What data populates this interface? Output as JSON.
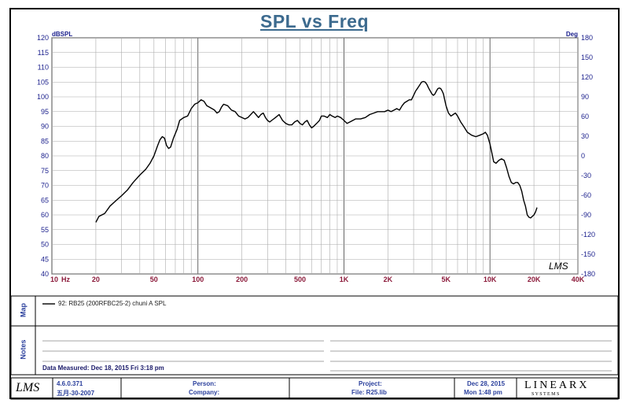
{
  "chart_data": {
    "type": "line",
    "title": "SPL vs Freq",
    "xscale": "log",
    "xlim": [
      10,
      40000
    ],
    "ylim": [
      40,
      120
    ],
    "y2lim": [
      -180,
      180
    ],
    "ylabel": "dBSPL",
    "y2label": "Deg",
    "x_ticks": [
      {
        "v": 10,
        "label": "10"
      },
      {
        "v": 20,
        "label": "20"
      },
      {
        "v": 50,
        "label": "50"
      },
      {
        "v": 100,
        "label": "100"
      },
      {
        "v": 200,
        "label": "200"
      },
      {
        "v": 500,
        "label": "500"
      },
      {
        "v": 1000,
        "label": "1K"
      },
      {
        "v": 2000,
        "label": "2K"
      },
      {
        "v": 5000,
        "label": "5K"
      },
      {
        "v": 10000,
        "label": "10K"
      },
      {
        "v": 20000,
        "label": "20K"
      },
      {
        "v": 40000,
        "label": "40K"
      }
    ],
    "x_unit": "Hz",
    "y_ticks": [
      40,
      45,
      50,
      55,
      60,
      65,
      70,
      75,
      80,
      85,
      90,
      95,
      100,
      105,
      110,
      115,
      120
    ],
    "y2_ticks": [
      -180,
      -150,
      -120,
      -90,
      -60,
      -30,
      0,
      30,
      60,
      90,
      120,
      150,
      180
    ],
    "grid": true,
    "legend": "below chart",
    "series": [
      {
        "name": "92: RB25 (200RFBC25-2)  chuni  A   SPL",
        "color": "#000000",
        "points": [
          [
            20,
            57.5
          ],
          [
            21,
            59.5
          ],
          [
            23,
            60.5
          ],
          [
            25,
            63
          ],
          [
            27,
            64.5
          ],
          [
            30,
            66.5
          ],
          [
            33,
            68.5
          ],
          [
            36,
            71
          ],
          [
            40,
            73.5
          ],
          [
            44,
            75.5
          ],
          [
            47,
            77.5
          ],
          [
            50,
            80
          ],
          [
            53,
            83.5
          ],
          [
            55,
            85.5
          ],
          [
            57,
            86.5
          ],
          [
            59,
            86
          ],
          [
            61,
            83.5
          ],
          [
            63,
            82.5
          ],
          [
            65,
            83
          ],
          [
            68,
            86
          ],
          [
            72,
            89
          ],
          [
            75,
            92
          ],
          [
            80,
            93
          ],
          [
            85,
            93.5
          ],
          [
            90,
            96
          ],
          [
            95,
            97.5
          ],
          [
            100,
            98
          ],
          [
            105,
            99
          ],
          [
            110,
            98.5
          ],
          [
            115,
            97
          ],
          [
            120,
            96.5
          ],
          [
            125,
            96
          ],
          [
            130,
            95.5
          ],
          [
            135,
            94.5
          ],
          [
            140,
            95
          ],
          [
            145,
            96.5
          ],
          [
            150,
            97.5
          ],
          [
            160,
            97
          ],
          [
            170,
            95.5
          ],
          [
            180,
            95
          ],
          [
            190,
            93.5
          ],
          [
            200,
            93
          ],
          [
            210,
            92.5
          ],
          [
            220,
            93
          ],
          [
            230,
            94
          ],
          [
            240,
            95
          ],
          [
            250,
            94
          ],
          [
            260,
            93
          ],
          [
            270,
            94
          ],
          [
            280,
            94.5
          ],
          [
            290,
            93
          ],
          [
            300,
            92
          ],
          [
            310,
            91.5
          ],
          [
            320,
            92
          ],
          [
            340,
            93
          ],
          [
            360,
            94
          ],
          [
            380,
            92
          ],
          [
            400,
            91
          ],
          [
            420,
            90.5
          ],
          [
            440,
            90.5
          ],
          [
            460,
            91.5
          ],
          [
            480,
            92
          ],
          [
            500,
            91
          ],
          [
            520,
            90.5
          ],
          [
            540,
            91.5
          ],
          [
            560,
            92
          ],
          [
            580,
            90.5
          ],
          [
            600,
            89.5
          ],
          [
            620,
            90
          ],
          [
            650,
            91
          ],
          [
            680,
            92
          ],
          [
            700,
            93.5
          ],
          [
            730,
            93.5
          ],
          [
            770,
            93
          ],
          [
            800,
            94
          ],
          [
            830,
            93.5
          ],
          [
            870,
            93
          ],
          [
            900,
            93.5
          ],
          [
            950,
            93
          ],
          [
            1000,
            92
          ],
          [
            1050,
            91
          ],
          [
            1100,
            91.5
          ],
          [
            1150,
            92
          ],
          [
            1200,
            92.5
          ],
          [
            1300,
            92.5
          ],
          [
            1400,
            93
          ],
          [
            1500,
            94
          ],
          [
            1600,
            94.5
          ],
          [
            1700,
            95
          ],
          [
            1800,
            95
          ],
          [
            1900,
            95
          ],
          [
            2000,
            95.5
          ],
          [
            2100,
            95
          ],
          [
            2200,
            95.5
          ],
          [
            2300,
            96
          ],
          [
            2400,
            95.5
          ],
          [
            2500,
            97
          ],
          [
            2600,
            98
          ],
          [
            2700,
            98.5
          ],
          [
            2800,
            99
          ],
          [
            2900,
            99
          ],
          [
            3000,
            100.5
          ],
          [
            3100,
            102
          ],
          [
            3200,
            103
          ],
          [
            3300,
            104
          ],
          [
            3400,
            105
          ],
          [
            3500,
            105.2
          ],
          [
            3600,
            105
          ],
          [
            3700,
            104.2
          ],
          [
            3800,
            103
          ],
          [
            3900,
            102
          ],
          [
            4000,
            101
          ],
          [
            4100,
            100.5
          ],
          [
            4200,
            101
          ],
          [
            4300,
            102
          ],
          [
            4400,
            102.8
          ],
          [
            4500,
            103
          ],
          [
            4600,
            102.8
          ],
          [
            4700,
            102
          ],
          [
            4800,
            101
          ],
          [
            4900,
            99
          ],
          [
            5000,
            97
          ],
          [
            5200,
            94.5
          ],
          [
            5400,
            93.5
          ],
          [
            5600,
            94
          ],
          [
            5800,
            94.5
          ],
          [
            6000,
            93.5
          ],
          [
            6300,
            91.5
          ],
          [
            6600,
            90
          ],
          [
            7000,
            88
          ],
          [
            7500,
            87
          ],
          [
            8000,
            86.5
          ],
          [
            8500,
            87
          ],
          [
            9000,
            87.5
          ],
          [
            9300,
            88
          ],
          [
            9600,
            87
          ],
          [
            10000,
            84
          ],
          [
            10300,
            81
          ],
          [
            10600,
            78
          ],
          [
            11000,
            77.5
          ],
          [
            11500,
            78.5
          ],
          [
            12000,
            79
          ],
          [
            12500,
            78.5
          ],
          [
            13000,
            76
          ],
          [
            13500,
            73
          ],
          [
            14000,
            71
          ],
          [
            14500,
            70.5
          ],
          [
            15000,
            71
          ],
          [
            15500,
            71
          ],
          [
            16000,
            70
          ],
          [
            16500,
            68
          ],
          [
            17000,
            65
          ],
          [
            17500,
            63
          ],
          [
            18000,
            60
          ],
          [
            18500,
            59.2
          ],
          [
            19000,
            59
          ],
          [
            19500,
            59.5
          ],
          [
            20000,
            60
          ],
          [
            20500,
            61
          ],
          [
            21000,
            62.5
          ]
        ]
      }
    ]
  },
  "watermark_logo": "LMS",
  "panels": {
    "map_label": "Map",
    "notes_label": "Notes",
    "data_measured": "Data Measured: Dec 18, 2015  Fri  3:18 pm"
  },
  "footer": {
    "logo": "LMS",
    "version": "4.6.0.371",
    "build_date": "五月-30-2007",
    "person_label": "Person:",
    "company_label": "Company:",
    "project_label": "Project:",
    "file_label": "File: R25.lib",
    "date": "Dec 28, 2015",
    "time": "Mon  1:48 pm",
    "brand_main": "LINEARX",
    "brand_sub": "S Y S T E M S"
  }
}
